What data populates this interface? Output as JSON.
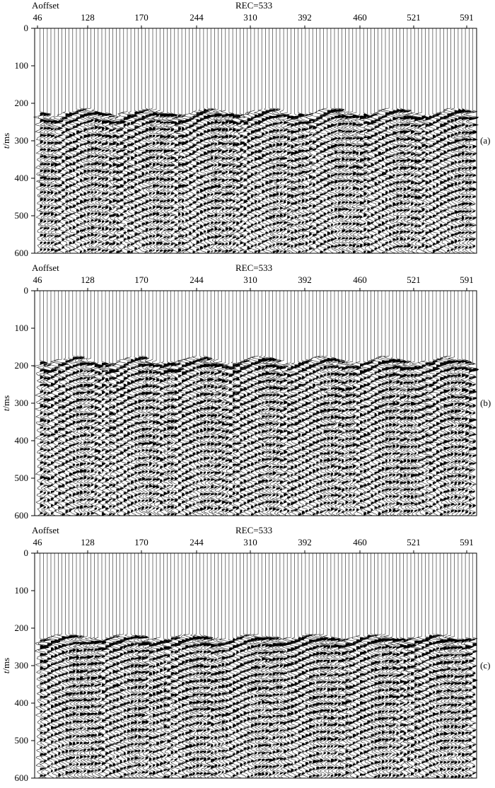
{
  "chart_data": [
    {
      "type": "seismic-wiggle",
      "panel_label": "(a)",
      "header_left": "Aoffset",
      "header_center": "REC=533",
      "x_tick_labels": [
        "46",
        "128",
        "170",
        "244",
        "310",
        "392",
        "460",
        "521",
        "591"
      ],
      "ylabel_italic": "t",
      "ylabel_rest": "/ms",
      "y_ticks": [
        0,
        100,
        200,
        300,
        400,
        500,
        600
      ],
      "ylim": [
        0,
        600
      ],
      "trace_count": 120,
      "first_break": [
        214,
        236
      ]
    },
    {
      "type": "seismic-wiggle",
      "panel_label": "(b)",
      "header_left": "Aoffset",
      "header_center": "REC=533",
      "x_tick_labels": [
        "46",
        "128",
        "170",
        "244",
        "310",
        "392",
        "460",
        "521",
        "591"
      ],
      "ylabel_italic": "t",
      "ylabel_rest": "/ms",
      "y_ticks": [
        0,
        100,
        200,
        300,
        400,
        500,
        600
      ],
      "ylim": [
        0,
        600
      ],
      "trace_count": 120,
      "first_break": [
        176,
        198
      ]
    },
    {
      "type": "seismic-wiggle",
      "panel_label": "(c)",
      "header_left": "Aoffset",
      "header_center": "REC=533",
      "x_tick_labels": [
        "46",
        "128",
        "170",
        "244",
        "310",
        "392",
        "460",
        "521",
        "591"
      ],
      "ylabel_italic": "t",
      "ylabel_rest": "/ms",
      "y_ticks": [
        0,
        100,
        200,
        300,
        400,
        500,
        600
      ],
      "ylim": [
        0,
        600
      ],
      "trace_count": 120,
      "first_break": [
        216,
        232
      ]
    }
  ]
}
